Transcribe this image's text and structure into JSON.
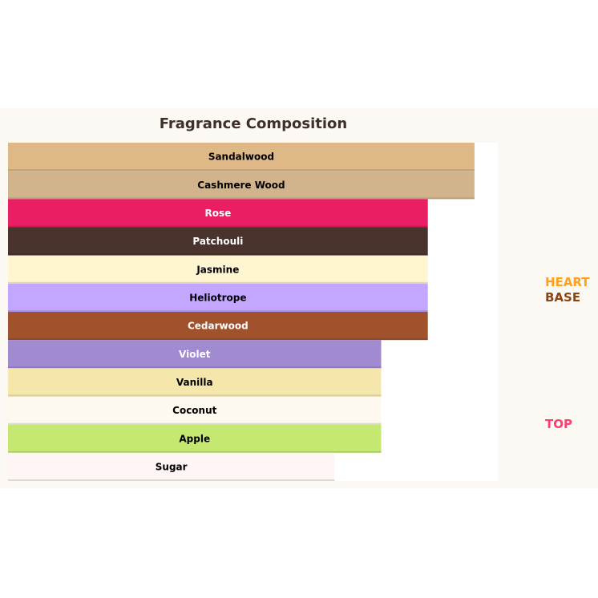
{
  "chart_data": {
    "type": "bar",
    "orientation": "horizontal",
    "title": "Fragrance Composition",
    "xlabel": "",
    "ylabel": "",
    "xlim": [
      0,
      10.5
    ],
    "grid": false,
    "categories": [
      "Sandalwood",
      "Cashmere Wood",
      "Rose",
      "Patchouli",
      "Jasmine",
      "Heliotrope",
      "Cedarwood",
      "Violet",
      "Vanilla",
      "Coconut",
      "Apple",
      "Sugar"
    ],
    "values": [
      10,
      10,
      9,
      9,
      9,
      9,
      9,
      8,
      8,
      8,
      8,
      7
    ],
    "colors": [
      "#deb887",
      "#d2b48c",
      "#e91e63",
      "#4a322d",
      "#fff5d1",
      "#c3a6ff",
      "#a0522d",
      "#a08bd0",
      "#f5e6ab",
      "#fdf9ee",
      "#c5e872",
      "#fff5f5"
    ],
    "label_colors": [
      "#000000",
      "#000000",
      "#ffffff",
      "#ffffff",
      "#000000",
      "#000000",
      "#ffffff",
      "#ffffff",
      "#000000",
      "#000000",
      "#000000",
      "#000000"
    ],
    "annotations": [
      {
        "text": "HEART",
        "color": "#ff9f1c"
      },
      {
        "text": "BASE",
        "color": "#8b4513"
      },
      {
        "text": "TOP",
        "color": "#ff3d6e"
      }
    ],
    "background": "#fcf8f3"
  }
}
